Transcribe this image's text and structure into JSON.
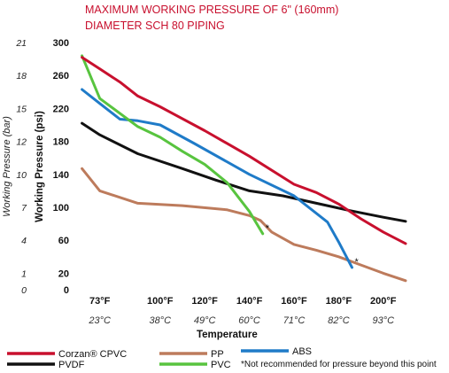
{
  "chart_data": {
    "type": "line",
    "title_lines": [
      "MAXIMUM WORKING PRESSURE OF 6\" (160mm)",
      "DIAMETER SCH 80 PIPING"
    ],
    "ylabel": "Working Pressure (psi)",
    "ylabel_secondary": "Working Pressure (bar)",
    "xlabel": "Temperature",
    "ylim": [
      0,
      300
    ],
    "xlim": [
      62,
      210
    ],
    "y_ticks": [
      0,
      20,
      60,
      100,
      140,
      180,
      220,
      260,
      300
    ],
    "y_ticks_bar": [
      "0",
      "1",
      "4",
      "7",
      "10",
      "12",
      "15",
      "18",
      "21"
    ],
    "x_ticks": [
      73,
      100,
      120,
      140,
      160,
      180,
      200
    ],
    "x_tick_labels_f": [
      "73°F",
      "100°F",
      "120°F",
      "140°F",
      "160°F",
      "180°F",
      "200°F"
    ],
    "x_tick_labels_c": [
      "23°C",
      "38°C",
      "49°C",
      "60°C",
      "71°C",
      "82°C",
      "93°C"
    ],
    "grid": false,
    "legend_position": "bottom",
    "series": [
      {
        "name": "Corzan® CPVC",
        "color": "#c8102e",
        "x": [
          65,
          73,
          82,
          90,
          100,
          120,
          140,
          160,
          170,
          180,
          190,
          200,
          210
        ],
        "y": [
          282,
          268,
          252,
          235,
          222,
          193,
          162,
          128,
          118,
          104,
          86,
          70,
          56
        ]
      },
      {
        "name": "PVDF",
        "color": "#111111",
        "x": [
          65,
          73,
          90,
          110,
          125,
          140,
          155,
          170,
          185,
          200,
          210
        ],
        "y": [
          202,
          188,
          165,
          147,
          133,
          120,
          114,
          105,
          96,
          88,
          83
        ]
      },
      {
        "name": "ABS",
        "color": "#1f7bc8",
        "x": [
          65,
          73,
          82,
          90,
          100,
          115,
          140,
          160,
          175,
          180,
          186
        ],
        "y": [
          243,
          226,
          207,
          205,
          200,
          178,
          140,
          114,
          82,
          58,
          27
        ]
      },
      {
        "name": "PVC",
        "color": "#58c43f",
        "x": [
          65,
          73,
          90,
          100,
          110,
          120,
          130,
          140,
          146
        ],
        "y": [
          284,
          232,
          198,
          185,
          168,
          152,
          130,
          95,
          68
        ]
      },
      {
        "name": "PP",
        "color": "#bd7b5c",
        "x": [
          65,
          73,
          90,
          110,
          130,
          140,
          145,
          150,
          160,
          170,
          180,
          190,
          200,
          210
        ],
        "y": [
          147,
          120,
          105,
          102,
          97,
          90,
          84,
          70,
          55,
          48,
          40,
          30,
          20,
          11
        ]
      }
    ],
    "annotations": [
      {
        "text": "*",
        "x": 146,
        "y": 68
      },
      {
        "text": "*",
        "x": 186,
        "y": 27
      }
    ],
    "legend_order": [
      "Corzan® CPVC",
      "PP",
      "ABS",
      "PVDF",
      "PVC"
    ],
    "footnote": "*Not recommended for pressure beyond this point"
  }
}
